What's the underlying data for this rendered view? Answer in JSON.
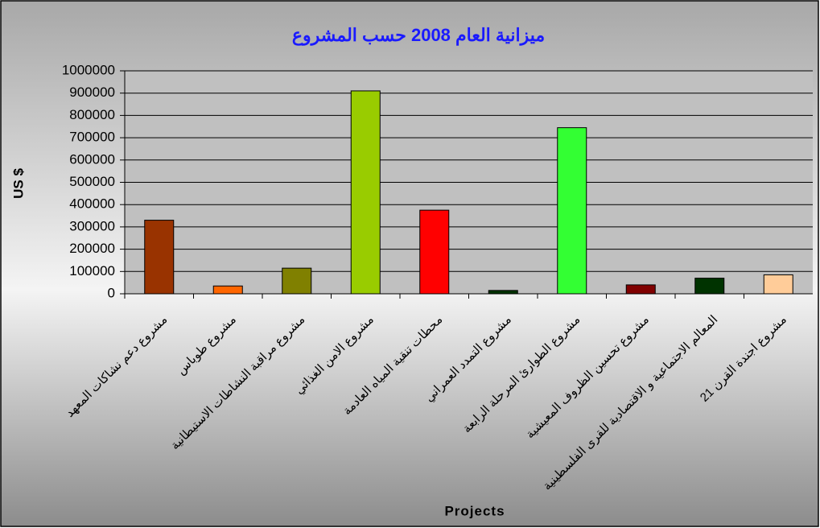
{
  "chart_data": {
    "type": "bar",
    "title": "ميزانية العام 2008 حسب المشروع",
    "y_label": "US $",
    "x_label": "Projects",
    "categories": [
      "مشروع دعم نشاكات المعهد",
      "مشروع طوباس",
      "مشروع مراقبة النشاطات الاستيطانية",
      "مشروع الامن الغذائي",
      "محطات تنقية المياه العادمة",
      "مشروع التمدد العمراني",
      "مشروع الطوارئ المرحلة الرابعة",
      "مشروع تحسين الظروف المعيشية",
      "المعالم الاجتماعية و الاقتصادية للقرى الفلسطينية",
      "مشروع اجندة القرن 21"
    ],
    "values": [
      330000,
      35000,
      115000,
      910000,
      375000,
      15000,
      745000,
      40000,
      70000,
      85000
    ],
    "colors": [
      "#993300",
      "#ff6600",
      "#808000",
      "#99cc00",
      "#ff0000",
      "#003300",
      "#33ff33",
      "#800000",
      "#003300",
      "#ffcc99"
    ],
    "ylim": [
      0,
      1000000
    ],
    "yticks": [
      0,
      100000,
      200000,
      300000,
      400000,
      500000,
      600000,
      700000,
      800000,
      900000,
      1000000
    ],
    "grid": true
  }
}
